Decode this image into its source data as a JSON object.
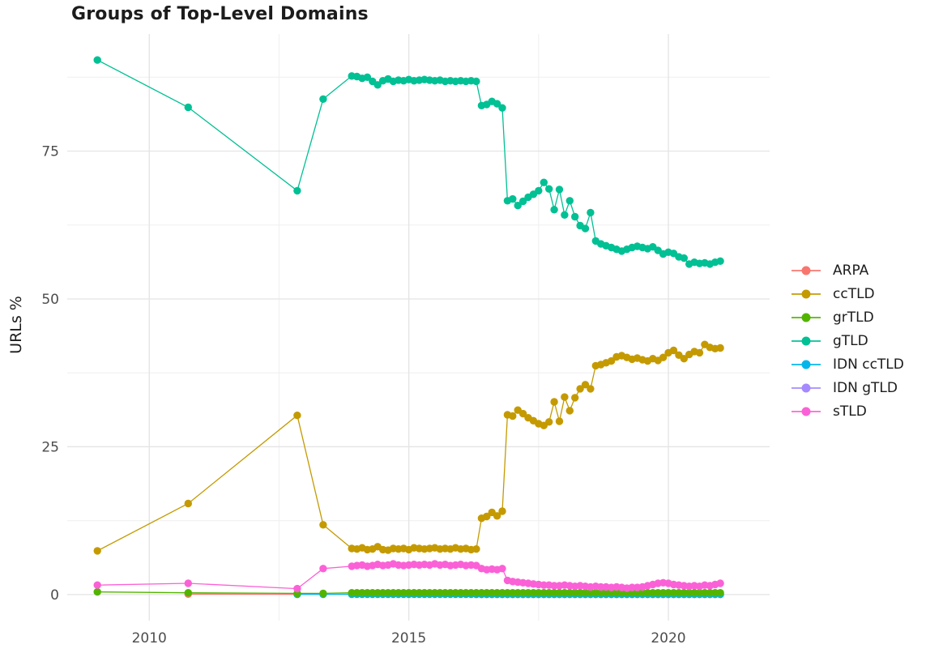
{
  "chart_data": {
    "type": "line",
    "title": "Groups of Top-Level Domains",
    "xlabel": "",
    "ylabel": "URLs %",
    "x_ticks": [
      2010,
      2015,
      2020
    ],
    "x_tick_labels": [
      "2010",
      "2015",
      "2020"
    ],
    "x_minor": [
      2012.5,
      2017.5
    ],
    "y_ticks": [
      0,
      25,
      50,
      75
    ],
    "y_tick_labels": [
      "0",
      "25",
      "50",
      "75"
    ],
    "y_minor": [
      12.5,
      37.5,
      62.5,
      87.5
    ],
    "xlim": [
      2008.42,
      2021.95
    ],
    "ylim": [
      -4.4,
      94.8
    ],
    "grid": true,
    "legend_position": "right",
    "marker": "circle",
    "series": [
      {
        "name": "ARPA",
        "color": "#F8766D",
        "points": [
          [
            2010.75,
            0.08
          ],
          [
            2012.85,
            0.05
          ]
        ]
      },
      {
        "name": "ccTLD",
        "color": "#C49A00",
        "points": [
          [
            2009.0,
            7.4
          ],
          [
            2010.75,
            15.4
          ],
          [
            2012.85,
            30.3
          ],
          [
            2013.35,
            11.8
          ]
        ],
        "dense": {
          "x_start": 2013.9,
          "x_step": 0.1,
          "values": [
            7.8,
            7.7,
            7.9,
            7.6,
            7.7,
            8.1,
            7.6,
            7.5,
            7.8,
            7.7,
            7.8,
            7.6,
            7.9,
            7.8,
            7.7,
            7.8,
            7.9,
            7.7,
            7.8,
            7.7,
            7.9,
            7.7,
            7.8,
            7.6,
            7.7,
            12.9,
            13.2,
            13.9,
            13.3,
            14.1,
            30.4,
            30.2,
            31.2,
            30.6,
            29.9,
            29.4,
            28.9,
            28.6,
            29.2,
            32.6,
            29.3,
            33.4,
            31.1,
            33.3,
            34.8,
            35.5,
            34.8,
            38.7,
            38.9,
            39.2,
            39.5,
            40.2,
            40.4,
            40.1,
            39.8,
            40.0,
            39.7,
            39.5,
            39.9,
            39.6,
            40.1,
            40.9,
            41.3,
            40.5,
            39.9,
            40.6,
            41.1,
            40.9,
            42.3,
            41.8,
            41.6,
            41.7
          ]
        }
      },
      {
        "name": "grTLD",
        "color": "#53B400",
        "points": [
          [
            2009.0,
            0.45
          ],
          [
            2010.75,
            0.3
          ],
          [
            2012.85,
            0.2
          ],
          [
            2013.35,
            0.2
          ]
        ],
        "dense": {
          "x_start": 2013.9,
          "x_step": 0.1,
          "count": 72,
          "value": 0.3
        }
      },
      {
        "name": "gTLD",
        "color": "#00C094",
        "points": [
          [
            2009.0,
            90.4
          ],
          [
            2010.75,
            82.4
          ],
          [
            2012.85,
            68.3
          ],
          [
            2013.35,
            83.8
          ]
        ],
        "dense": {
          "x_start": 2013.9,
          "x_step": 0.1,
          "values": [
            87.7,
            87.6,
            87.3,
            87.5,
            86.8,
            86.2,
            86.9,
            87.2,
            86.8,
            87.0,
            86.9,
            87.1,
            86.9,
            87.0,
            87.1,
            87.0,
            86.9,
            87.0,
            86.8,
            86.9,
            86.8,
            86.9,
            86.8,
            86.9,
            86.8,
            82.7,
            82.9,
            83.4,
            83.0,
            82.3,
            66.6,
            66.9,
            65.8,
            66.5,
            67.2,
            67.7,
            68.3,
            69.7,
            68.6,
            65.1,
            68.5,
            64.2,
            66.6,
            63.9,
            62.4,
            61.9,
            64.6,
            59.8,
            59.3,
            59.0,
            58.7,
            58.4,
            58.1,
            58.4,
            58.7,
            58.9,
            58.7,
            58.5,
            58.8,
            58.2,
            57.6,
            57.9,
            57.7,
            57.1,
            56.9,
            55.9,
            56.2,
            56.0,
            56.1,
            55.9,
            56.2,
            56.4
          ]
        }
      },
      {
        "name": "IDN ccTLD",
        "color": "#00B6EB",
        "points": [
          [
            2012.85,
            0.05
          ],
          [
            2013.35,
            0.05
          ]
        ],
        "dense": {
          "x_start": 2013.9,
          "x_step": 0.1,
          "count": 72,
          "value": 0.05
        }
      },
      {
        "name": "IDN gTLD",
        "color": "#A58AFF",
        "points": [],
        "dense": {
          "x_start": 2016.3,
          "x_step": 0.1,
          "count": 48,
          "value": 0.02
        }
      },
      {
        "name": "sTLD",
        "color": "#FB61D7",
        "points": [
          [
            2009.0,
            1.6
          ],
          [
            2010.75,
            1.9
          ],
          [
            2012.85,
            1.0
          ],
          [
            2013.35,
            4.4
          ]
        ],
        "dense": {
          "x_start": 2013.9,
          "x_step": 0.1,
          "values": [
            4.8,
            4.9,
            5.0,
            4.8,
            4.9,
            5.1,
            4.9,
            5.0,
            5.2,
            5.0,
            4.9,
            5.0,
            5.1,
            5.0,
            5.1,
            5.0,
            5.2,
            5.0,
            5.1,
            4.9,
            5.0,
            5.1,
            4.9,
            5.0,
            4.9,
            4.4,
            4.2,
            4.3,
            4.2,
            4.4,
            2.4,
            2.2,
            2.1,
            2.0,
            1.9,
            1.8,
            1.7,
            1.6,
            1.6,
            1.5,
            1.5,
            1.6,
            1.5,
            1.4,
            1.5,
            1.4,
            1.3,
            1.4,
            1.3,
            1.3,
            1.2,
            1.3,
            1.2,
            1.1,
            1.2,
            1.2,
            1.3,
            1.5,
            1.7,
            1.9,
            2.0,
            1.9,
            1.7,
            1.6,
            1.5,
            1.4,
            1.5,
            1.4,
            1.6,
            1.5,
            1.7,
            1.9
          ]
        }
      }
    ],
    "style": {
      "grid_major_color": "#E4E4E4",
      "grid_minor_color": "#F0F0F0",
      "tick_label_color": "#4d4d4d",
      "text_color": "#1c1c1c",
      "background": "#ffffff"
    }
  }
}
